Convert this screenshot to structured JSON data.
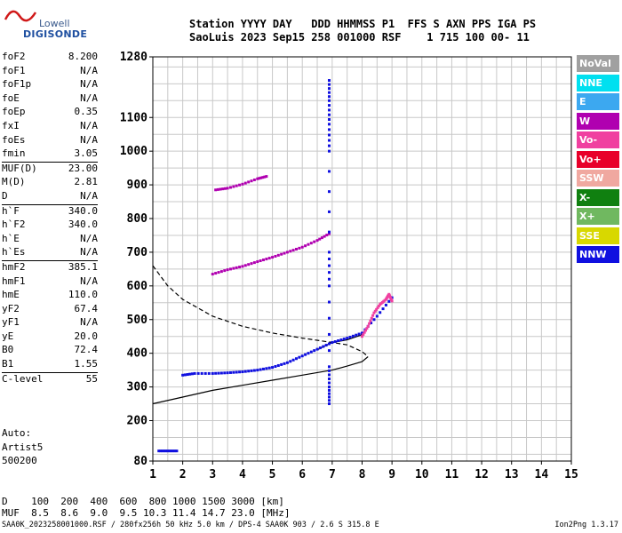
{
  "logo": {
    "line1": "Lowell",
    "line2": "DIGISONDE"
  },
  "header": {
    "row1": "Station YYYY DAY   DDD HHMMSS P1  FFS S AXN PPS IGA PS",
    "row2": "SaoLuis 2023 Sep15 258 001000 RSF    1 715 100 00- 11"
  },
  "params": [
    {
      "k": "foF2",
      "v": "8.200"
    },
    {
      "k": "foF1",
      "v": "N/A"
    },
    {
      "k": "foF1p",
      "v": "N/A"
    },
    {
      "k": "foE",
      "v": "N/A"
    },
    {
      "k": "foEp",
      "v": "0.35"
    },
    {
      "k": "fxI",
      "v": "N/A"
    },
    {
      "k": "foEs",
      "v": "N/A"
    },
    {
      "k": "fmin",
      "v": "3.05"
    },
    {
      "k": "MUF(D)",
      "v": "23.00",
      "sep": true
    },
    {
      "k": "M(D)",
      "v": "2.81"
    },
    {
      "k": "D",
      "v": "N/A"
    },
    {
      "k": "h`F",
      "v": "340.0",
      "sep": true
    },
    {
      "k": "h`F2",
      "v": "340.0"
    },
    {
      "k": "h`E",
      "v": "N/A"
    },
    {
      "k": "h`Es",
      "v": "N/A"
    },
    {
      "k": "hmF2",
      "v": "385.1",
      "sep": true
    },
    {
      "k": "hmF1",
      "v": "N/A"
    },
    {
      "k": "hmE",
      "v": "110.0"
    },
    {
      "k": "yF2",
      "v": "67.4"
    },
    {
      "k": "yF1",
      "v": "N/A"
    },
    {
      "k": "yE",
      "v": "20.0"
    },
    {
      "k": "B0",
      "v": "72.4"
    },
    {
      "k": "B1",
      "v": "1.55"
    },
    {
      "k": "C-level",
      "v": "55",
      "sep": true
    }
  ],
  "auto": {
    "l1": "Auto:",
    "l2": "Artist5",
    "l3": "500200"
  },
  "legend": [
    {
      "label": "NoVal",
      "color": "#a0a0a0"
    },
    {
      "label": "NNE",
      "color": "#00e0f0"
    },
    {
      "label": "E",
      "color": "#3ca8f0"
    },
    {
      "label": "W",
      "color": "#b000b0"
    },
    {
      "label": "Vo-",
      "color": "#f040a0"
    },
    {
      "label": "Vo+",
      "color": "#e8002a"
    },
    {
      "label": "SSW",
      "color": "#f0a8a0"
    },
    {
      "label": "X-",
      "color": "#108010"
    },
    {
      "label": "X+",
      "color": "#70b860"
    },
    {
      "label": "SSE",
      "color": "#d8d800"
    },
    {
      "label": "NNW",
      "color": "#1010e0"
    }
  ],
  "bottom": {
    "d_row": "D    100  200  400  600  800 1000 1500 3000 [km]",
    "muf_row": "MUF  8.5  8.6  9.0  9.5 10.3 11.4 14.7 23.0 [MHz]"
  },
  "footer": "SAA0K_2023258001000.RSF / 280fx256h 50 kHz 5.0 km / DPS-4 SAA0K 903 / 2.6 S 315.8 E",
  "version": "Ion2Png 1.3.17",
  "chart_data": {
    "type": "scatter",
    "xlim": [
      1,
      15
    ],
    "ylim": [
      80,
      1280
    ],
    "x_ticks": [
      1,
      2,
      3,
      4,
      5,
      6,
      7,
      8,
      9,
      10,
      11,
      12,
      13,
      14,
      15
    ],
    "y_ticks": [
      80,
      200,
      300,
      400,
      500,
      600,
      700,
      800,
      900,
      1000,
      1100,
      1280
    ],
    "grid": true,
    "traces": [
      {
        "name": "o-trace",
        "color": "#1010e0",
        "points": [
          [
            2.0,
            335
          ],
          [
            2.4,
            340
          ],
          [
            3.0,
            340
          ],
          [
            3.5,
            342
          ],
          [
            4.0,
            345
          ],
          [
            4.5,
            350
          ],
          [
            5.0,
            358
          ],
          [
            5.5,
            372
          ],
          [
            6.0,
            392
          ],
          [
            6.5,
            412
          ],
          [
            7.0,
            432
          ],
          [
            7.5,
            445
          ],
          [
            8.0,
            460
          ],
          [
            8.5,
            510
          ],
          [
            9.0,
            565
          ]
        ]
      },
      {
        "name": "o-trace-upper",
        "color": "#b000b0",
        "points": [
          [
            3.0,
            635
          ],
          [
            3.5,
            648
          ],
          [
            4.0,
            658
          ],
          [
            4.5,
            672
          ],
          [
            5.0,
            685
          ],
          [
            5.5,
            700
          ],
          [
            6.0,
            715
          ],
          [
            6.5,
            735
          ],
          [
            6.9,
            755
          ]
        ]
      },
      {
        "name": "o-trace-high",
        "color": "#b000b0",
        "points": [
          [
            3.1,
            885
          ],
          [
            3.5,
            890
          ],
          [
            4.0,
            902
          ],
          [
            4.5,
            918
          ],
          [
            4.8,
            925
          ]
        ]
      },
      {
        "name": "spread",
        "color": "#f040a0",
        "points": [
          [
            8.0,
            450
          ],
          [
            8.2,
            480
          ],
          [
            8.4,
            520
          ],
          [
            8.6,
            545
          ],
          [
            8.8,
            560
          ],
          [
            8.9,
            575
          ],
          [
            9.0,
            555
          ]
        ]
      },
      {
        "name": "vertical-spike",
        "color": "#1010e0",
        "points": [
          [
            6.9,
            1210
          ],
          [
            6.9,
            1150
          ],
          [
            6.9,
            1080
          ],
          [
            6.9,
            1000
          ],
          [
            6.9,
            700
          ],
          [
            6.9,
            600
          ],
          [
            6.9,
            360
          ],
          [
            6.9,
            300
          ],
          [
            6.9,
            250
          ]
        ]
      },
      {
        "name": "low-echo",
        "color": "#1010e0",
        "points": [
          [
            1.2,
            110
          ],
          [
            1.5,
            110
          ],
          [
            1.8,
            110
          ]
        ]
      }
    ],
    "profile_lines": [
      {
        "name": "dashed-profile",
        "style": "dashed",
        "points": [
          [
            1.0,
            660
          ],
          [
            1.5,
            600
          ],
          [
            2.0,
            560
          ],
          [
            3.0,
            510
          ],
          [
            4.0,
            480
          ],
          [
            5.0,
            460
          ],
          [
            6.0,
            445
          ],
          [
            7.0,
            432
          ],
          [
            7.5,
            425
          ],
          [
            8.0,
            405
          ],
          [
            8.2,
            390
          ]
        ]
      },
      {
        "name": "solid-profile",
        "style": "solid",
        "points": [
          [
            1.0,
            250
          ],
          [
            2.0,
            270
          ],
          [
            3.0,
            290
          ],
          [
            4.0,
            305
          ],
          [
            5.0,
            320
          ],
          [
            6.0,
            335
          ],
          [
            7.0,
            350
          ],
          [
            7.5,
            362
          ],
          [
            8.0,
            375
          ],
          [
            8.2,
            390
          ]
        ]
      },
      {
        "name": "solid-trace",
        "style": "solid",
        "points": [
          [
            6.5,
            410
          ],
          [
            7.0,
            432
          ],
          [
            7.5,
            440
          ],
          [
            8.0,
            455
          ]
        ]
      }
    ]
  }
}
